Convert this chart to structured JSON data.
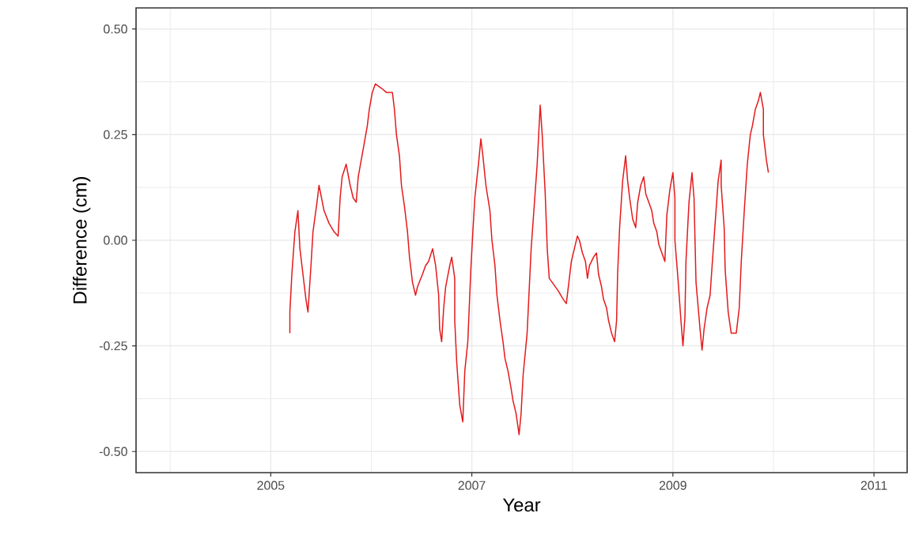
{
  "chart_data": {
    "type": "line",
    "xlabel": "Year",
    "ylabel": "Difference (cm)",
    "xlim": [
      2003.66,
      2011.33
    ],
    "ylim": [
      -0.55,
      0.55
    ],
    "xticks": [
      2005,
      2007,
      2009,
      2011
    ],
    "yticks": [
      {
        "value": -0.5,
        "label": "-0.50"
      },
      {
        "value": -0.25,
        "label": "-0.25"
      },
      {
        "value": 0,
        "label": "0.00"
      },
      {
        "value": 0.25,
        "label": "0.25"
      },
      {
        "value": 0.5,
        "label": "0.50"
      }
    ],
    "grid": true,
    "marker": "none",
    "line_style": "solid",
    "series": [
      {
        "color": "#e41a1c",
        "x": [
          2005.19,
          2005.19,
          2005.21,
          2005.24,
          2005.27,
          2005.29,
          2005.32,
          2005.35,
          2005.37,
          2005.4,
          2005.42,
          2005.46,
          2005.48,
          2005.53,
          2005.58,
          2005.63,
          2005.67,
          2005.69,
          2005.71,
          2005.75,
          2005.79,
          2005.82,
          2005.85,
          2005.87,
          2005.9,
          2005.93,
          2005.96,
          2005.98,
          2006.01,
          2006.04,
          2006.1,
          2006.15,
          2006.21,
          2006.23,
          2006.25,
          2006.28,
          2006.3,
          2006.33,
          2006.36,
          2006.38,
          2006.41,
          2006.44,
          2006.46,
          2006.51,
          2006.54,
          2006.57,
          2006.61,
          2006.64,
          2006.67,
          2006.68,
          2006.7,
          2006.72,
          2006.74,
          2006.78,
          2006.8,
          2006.83,
          2006.83,
          2006.85,
          2006.88,
          2006.91,
          2006.93,
          2006.96,
          2006.99,
          2007.01,
          2007.03,
          2007.07,
          2007.09,
          2007.11,
          2007.14,
          2007.18,
          2007.2,
          2007.23,
          2007.25,
          2007.28,
          2007.31,
          2007.33,
          2007.36,
          2007.39,
          2007.41,
          2007.44,
          2007.47,
          2007.49,
          2007.51,
          2007.55,
          2007.57,
          2007.59,
          2007.62,
          2007.65,
          2007.68,
          2007.7,
          2007.73,
          2007.75,
          2007.77,
          2007.8,
          2007.86,
          2007.91,
          2007.94,
          2007.97,
          2007.99,
          2008.02,
          2008.05,
          2008.07,
          2008.1,
          2008.13,
          2008.15,
          2008.17,
          2008.21,
          2008.24,
          2008.26,
          2008.29,
          2008.31,
          2008.34,
          2008.36,
          2008.39,
          2008.42,
          2008.44,
          2008.45,
          2008.47,
          2008.5,
          2008.53,
          2008.55,
          2008.57,
          2008.6,
          2008.63,
          2008.65,
          2008.68,
          2008.71,
          2008.73,
          2008.76,
          2008.79,
          2008.81,
          2008.84,
          2008.86,
          2008.89,
          2008.92,
          2008.94,
          2008.97,
          2009.0,
          2009.02,
          2009.02,
          2009.05,
          2009.08,
          2009.1,
          2009.12,
          2009.13,
          2009.16,
          2009.19,
          2009.21,
          2009.22,
          2009.23,
          2009.27,
          2009.29,
          2009.31,
          2009.34,
          2009.37,
          2009.39,
          2009.42,
          2009.45,
          2009.48,
          2009.48,
          2009.51,
          2009.52,
          2009.55,
          2009.58,
          2009.63,
          2009.66,
          2009.68,
          2009.71,
          2009.74,
          2009.77,
          2009.79,
          2009.82,
          2009.85,
          2009.87,
          2009.9,
          2009.9,
          2009.93,
          2009.95
        ],
        "values": [
          -0.22,
          -0.17,
          -0.08,
          0.02,
          0.07,
          -0.02,
          -0.08,
          -0.14,
          -0.17,
          -0.06,
          0.02,
          0.09,
          0.13,
          0.07,
          0.04,
          0.02,
          0.01,
          0.1,
          0.15,
          0.18,
          0.13,
          0.1,
          0.09,
          0.15,
          0.19,
          0.23,
          0.27,
          0.31,
          0.35,
          0.37,
          0.36,
          0.35,
          0.35,
          0.31,
          0.25,
          0.2,
          0.13,
          0.08,
          0.02,
          -0.04,
          -0.1,
          -0.13,
          -0.11,
          -0.08,
          -0.06,
          -0.05,
          -0.02,
          -0.06,
          -0.13,
          -0.21,
          -0.24,
          -0.16,
          -0.11,
          -0.06,
          -0.04,
          -0.09,
          -0.19,
          -0.29,
          -0.39,
          -0.43,
          -0.31,
          -0.24,
          -0.07,
          0.02,
          0.1,
          0.19,
          0.24,
          0.2,
          0.13,
          0.07,
          0.0,
          -0.06,
          -0.13,
          -0.19,
          -0.24,
          -0.28,
          -0.31,
          -0.35,
          -0.38,
          -0.41,
          -0.46,
          -0.41,
          -0.32,
          -0.22,
          -0.12,
          -0.02,
          0.08,
          0.18,
          0.32,
          0.25,
          0.11,
          -0.02,
          -0.09,
          -0.1,
          -0.12,
          -0.14,
          -0.15,
          -0.09,
          -0.05,
          -0.02,
          0.01,
          0.0,
          -0.03,
          -0.05,
          -0.09,
          -0.06,
          -0.04,
          -0.03,
          -0.08,
          -0.11,
          -0.14,
          -0.16,
          -0.19,
          -0.22,
          -0.24,
          -0.19,
          -0.08,
          0.03,
          0.14,
          0.2,
          0.14,
          0.1,
          0.05,
          0.03,
          0.09,
          0.13,
          0.15,
          0.11,
          0.09,
          0.07,
          0.04,
          0.02,
          -0.01,
          -0.03,
          -0.05,
          0.06,
          0.12,
          0.16,
          0.1,
          0.0,
          -0.09,
          -0.19,
          -0.25,
          -0.18,
          -0.05,
          0.09,
          0.16,
          0.1,
          0.0,
          -0.1,
          -0.21,
          -0.26,
          -0.21,
          -0.16,
          -0.13,
          -0.06,
          0.04,
          0.14,
          0.19,
          0.13,
          0.03,
          -0.07,
          -0.17,
          -0.22,
          -0.22,
          -0.16,
          -0.05,
          0.07,
          0.18,
          0.25,
          0.27,
          0.31,
          0.33,
          0.35,
          0.31,
          0.25,
          0.19,
          0.16
        ]
      }
    ]
  }
}
